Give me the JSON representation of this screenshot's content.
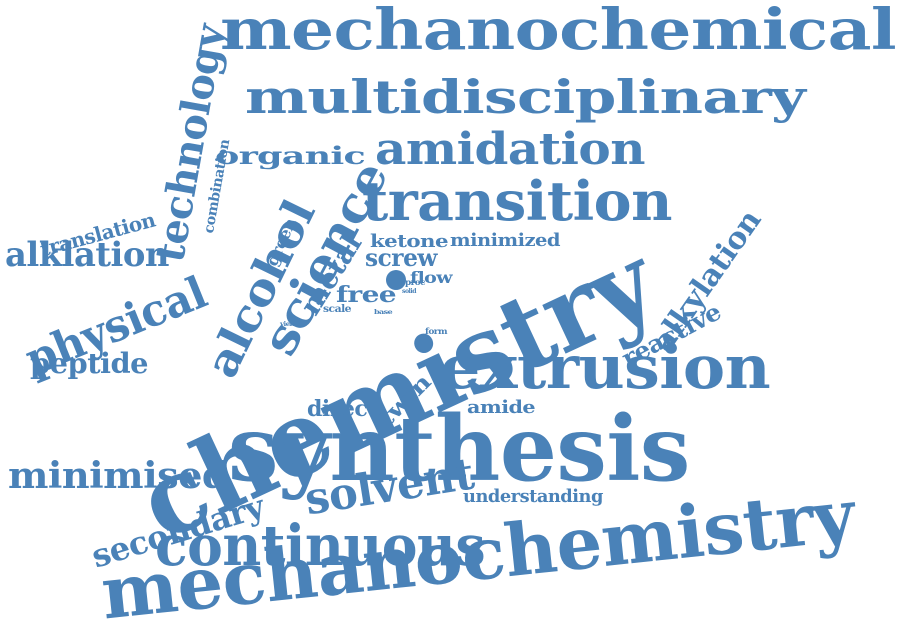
{
  "word_color": "#4a82b8",
  "words": [
    {
      "id": "mechanochemical",
      "text": "mechanochemical"
    },
    {
      "id": "multidisciplinary",
      "text": "multidisciplinary"
    },
    {
      "id": "amidation",
      "text": "amidation"
    },
    {
      "id": "organic",
      "text": "organic"
    },
    {
      "id": "transition",
      "text": "transition"
    },
    {
      "id": "technology",
      "text": "technology"
    },
    {
      "id": "combination",
      "text": "combination"
    },
    {
      "id": "translation",
      "text": "translation"
    },
    {
      "id": "alklation",
      "text": "alklation"
    },
    {
      "id": "physical",
      "text": "physical"
    },
    {
      "id": "alcohol",
      "text": "alcohol"
    },
    {
      "id": "science",
      "text": "science"
    },
    {
      "id": "green",
      "text": "green"
    },
    {
      "id": "metal",
      "text": "metal"
    },
    {
      "id": "ketone",
      "text": "ketone"
    },
    {
      "id": "minimized",
      "text": "minimized"
    },
    {
      "id": "screw",
      "text": "screw"
    },
    {
      "id": "proc",
      "text": "proc"
    },
    {
      "id": "flow",
      "text": "flow"
    },
    {
      "id": "free",
      "text": "free"
    },
    {
      "id": "solid",
      "text": "solid"
    },
    {
      "id": "scale",
      "text": "scale"
    },
    {
      "id": "base",
      "text": "base"
    },
    {
      "id": "yield",
      "text": "yield"
    },
    {
      "id": "form",
      "text": "form"
    },
    {
      "id": "chemistry",
      "text": "chemistry"
    },
    {
      "id": "alkylation",
      "text": "alkylation"
    },
    {
      "id": "reactive",
      "text": "reactive"
    },
    {
      "id": "peptide",
      "text": "peptide"
    },
    {
      "id": "extrusion",
      "text": "extrusion"
    },
    {
      "id": "direct",
      "text": "direct"
    },
    {
      "id": "twin",
      "text": "twin"
    },
    {
      "id": "amide",
      "text": "amide"
    },
    {
      "id": "synthesis",
      "text": "synthesis"
    },
    {
      "id": "minimised",
      "text": "minimised"
    },
    {
      "id": "secondary",
      "text": "secondary"
    },
    {
      "id": "solvent",
      "text": "solvent"
    },
    {
      "id": "understanding",
      "text": "understanding"
    },
    {
      "id": "continuous",
      "text": "continuous"
    },
    {
      "id": "mechanochemistry",
      "text": "mechanochemistry"
    }
  ]
}
